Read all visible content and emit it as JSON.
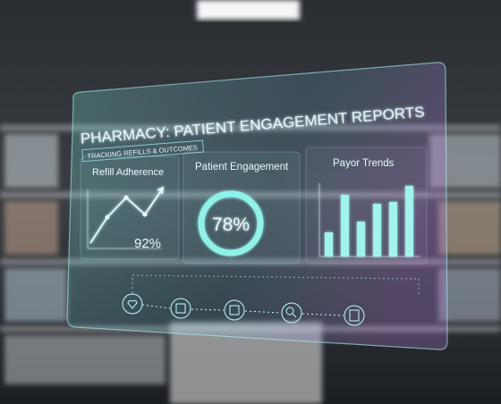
{
  "header": {
    "title": "PHARMACY: PATIENT ENGAGEMENT REPORTS",
    "subtitle": "TRACKING REFILLS & OUTCOMES"
  },
  "panels": [
    {
      "title": "Refill Adherence",
      "value": "92%"
    },
    {
      "title": "Patient Engagement",
      "value": "78%"
    },
    {
      "title": "Payor Trends"
    }
  ]
}
